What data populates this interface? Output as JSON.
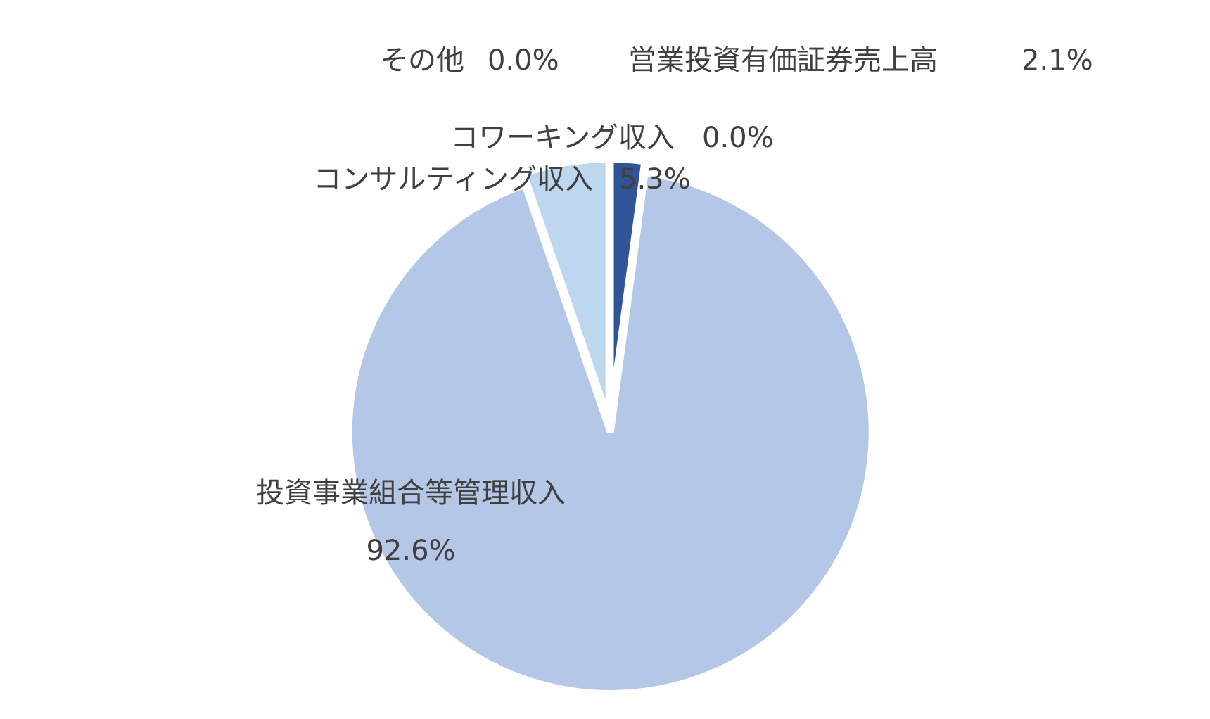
{
  "chart_data": {
    "type": "pie",
    "categories": [
      "営業投資有価証券売上高",
      "投資事業組合等管理収入",
      "コンサルティング収入",
      "コワーキング収入",
      "その他"
    ],
    "values": [
      2.1,
      92.6,
      5.3,
      0,
      0
    ],
    "value_labels": [
      "2.1%",
      "92.6%",
      "5.3%",
      "0.0%",
      "0.0%"
    ],
    "colors": [
      "#2f5597",
      "#b4c7e7",
      "#bdd7ee",
      "#8faadc",
      "#dae3f3"
    ]
  }
}
